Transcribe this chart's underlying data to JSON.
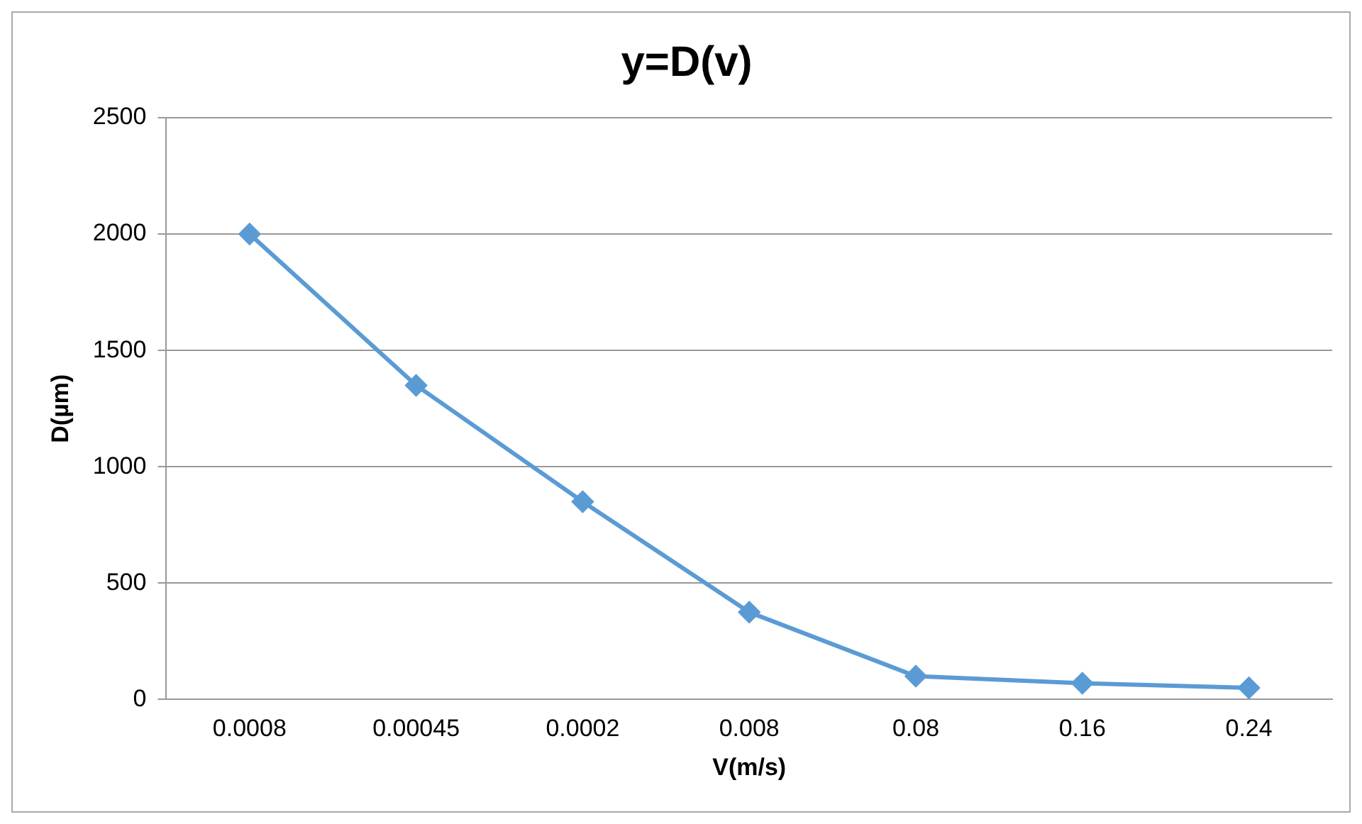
{
  "chart_data": {
    "type": "line",
    "title": "y=D(v)",
    "xlabel": "V(m/s)",
    "ylabel": "D(µm)",
    "categories": [
      "0.0008",
      "0.00045",
      "0.0002",
      "0.008",
      "0.08",
      "0.16",
      "0.24"
    ],
    "series": [
      {
        "color": "#5b9bd5",
        "values": [
          2000,
          1350,
          850,
          375,
          100,
          70,
          50
        ]
      }
    ],
    "ylim": [
      0,
      2500
    ],
    "yticks": [
      0,
      500,
      1000,
      1500,
      2000,
      2500
    ],
    "grid": "y",
    "legend": false,
    "marker": "diamond",
    "line_style": "solid"
  }
}
